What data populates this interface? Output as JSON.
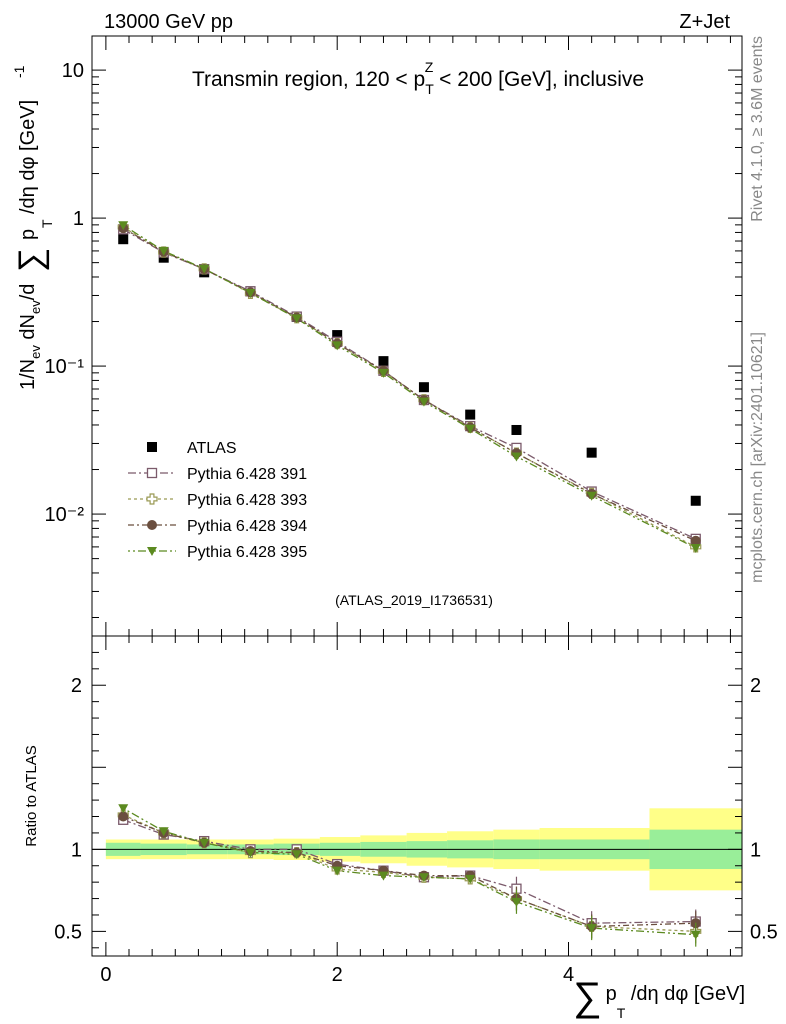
{
  "header": {
    "left": "13000 GeV pp",
    "right": "Z+Jet"
  },
  "side_labels": {
    "rivet": "Rivet 4.1.0, ≥ 3.6M events",
    "mcplots": "mcplots.cern.ch [arXiv:2401.10621]"
  },
  "watermark": "(ATLAS_2019_I1736531)",
  "colors": {
    "data": "#000000",
    "p391": "#7b5a6b",
    "p393": "#9a9a55",
    "p394": "#6b4f3f",
    "p395": "#5c8a20",
    "band_inner": "#99ee99",
    "band_outer": "#ffff88"
  },
  "chart_data": [
    {
      "type": "scatter",
      "panel": "main",
      "title": "Transmin region, 120 < p_T^Z < 200 [GeV], inclusive",
      "title_parts": {
        "a": "Transmin region, 120 < p",
        "sup": "Z",
        "sub": "T",
        "b": " < 200 [GeV], inclusive"
      },
      "ylabel": "1/N_ev dN_ev/d∑ p_T /dη dφ [GeV]^-1",
      "yscale": "log",
      "ylim": [
        0.0015,
        17
      ],
      "xlim": [
        -0.12,
        5.5
      ],
      "yticks": [
        {
          "value": 10,
          "label": "10"
        },
        {
          "value": 1,
          "label": "1"
        },
        {
          "value": 0.1,
          "label": "10⁻¹"
        },
        {
          "value": 0.01,
          "label": "10⁻²"
        }
      ],
      "x": [
        0.15,
        0.5,
        0.85,
        1.25,
        1.65,
        2.0,
        2.4,
        2.75,
        3.15,
        3.55,
        4.2,
        5.1
      ],
      "series": [
        {
          "name": "ATLAS",
          "key": "data",
          "marker": "square-filled",
          "values": [
            0.72,
            0.54,
            0.43,
            0.32,
            0.215,
            0.162,
            0.108,
            0.072,
            0.047,
            0.037,
            0.026,
            0.0123
          ]
        },
        {
          "name": "Pythia 6.428 391",
          "key": "p391",
          "marker": "square-open",
          "dash": "8,3,2,3",
          "values": [
            0.84,
            0.585,
            0.452,
            0.32,
            0.216,
            0.146,
            0.093,
            0.059,
            0.0393,
            0.028,
            0.0142,
            0.0068
          ]
        },
        {
          "name": "Pythia 6.428 393",
          "key": "p393",
          "marker": "cross-open",
          "dash": "3,3",
          "values": [
            0.87,
            0.59,
            0.454,
            0.31,
            0.212,
            0.142,
            0.092,
            0.0592,
            0.0385,
            0.0258,
            0.0138,
            0.006
          ]
        },
        {
          "name": "Pythia 6.428 394",
          "key": "p394",
          "marker": "circle-filled",
          "dash": "6,3,2,3",
          "values": [
            0.855,
            0.592,
            0.452,
            0.315,
            0.213,
            0.142,
            0.093,
            0.059,
            0.0385,
            0.0258,
            0.0137,
            0.0066
          ]
        },
        {
          "name": "Pythia 6.428 395",
          "key": "p395",
          "marker": "triangle-down-filled",
          "dash": "2,3,2,3,8,3",
          "values": [
            0.895,
            0.6,
            0.455,
            0.312,
            0.21,
            0.138,
            0.09,
            0.0575,
            0.0378,
            0.0245,
            0.0133,
            0.0059
          ]
        }
      ]
    },
    {
      "type": "scatter",
      "panel": "ratio",
      "ylabel": "Ratio to ATLAS",
      "xlabel": "∑ p_T /dη dφ [GeV]",
      "xlabel_parts": {
        "sum": "∑",
        "p": "p",
        "sub": "T",
        "rest": " /dη dφ [GeV]"
      },
      "ylim": [
        0.35,
        2.3
      ],
      "xlim": [
        -0.12,
        5.5
      ],
      "yticks": [
        0.5,
        1,
        2
      ],
      "xticks": [
        0,
        2,
        4
      ],
      "bins": [
        0,
        0.3,
        0.7,
        1.05,
        1.45,
        1.85,
        2.2,
        2.6,
        2.95,
        3.35,
        3.75,
        4.7,
        5.5
      ],
      "band_inner": [
        0.04,
        0.035,
        0.03,
        0.03,
        0.035,
        0.04,
        0.045,
        0.05,
        0.055,
        0.06,
        0.06,
        0.12
      ],
      "band_outer": [
        0.06,
        0.06,
        0.06,
        0.06,
        0.065,
        0.075,
        0.085,
        0.1,
        0.11,
        0.12,
        0.13,
        0.25
      ],
      "x": [
        0.15,
        0.5,
        0.85,
        1.25,
        1.65,
        2.0,
        2.4,
        2.75,
        3.15,
        3.55,
        4.2,
        5.1
      ],
      "series": [
        {
          "name": "Pythia 6.428 391",
          "key": "p391",
          "marker": "square-open",
          "dash": "8,3,2,3",
          "values": [
            1.18,
            1.09,
            1.05,
            1.0,
            1.0,
            0.91,
            0.87,
            0.83,
            0.84,
            0.76,
            0.55,
            0.56
          ]
        },
        {
          "name": "Pythia 6.428 393",
          "key": "p393",
          "marker": "cross-open",
          "dash": "3,3",
          "values": [
            1.21,
            1.1,
            1.04,
            0.98,
            0.98,
            0.88,
            0.86,
            0.83,
            0.82,
            0.7,
            0.53,
            0.5
          ]
        },
        {
          "name": "Pythia 6.428 394",
          "key": "p394",
          "marker": "circle-filled",
          "dash": "6,3,2,3",
          "values": [
            1.2,
            1.1,
            1.04,
            0.99,
            0.98,
            0.9,
            0.87,
            0.84,
            0.84,
            0.7,
            0.53,
            0.55
          ]
        },
        {
          "name": "Pythia 6.428 395",
          "key": "p395",
          "marker": "triangle-down-filled",
          "dash": "2,3,2,3,8,3",
          "values": [
            1.25,
            1.11,
            1.04,
            0.98,
            0.97,
            0.87,
            0.84,
            0.83,
            0.82,
            0.68,
            0.52,
            0.48
          ]
        }
      ]
    }
  ]
}
